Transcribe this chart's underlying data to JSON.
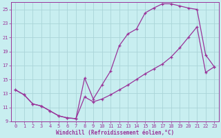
{
  "xlabel": "Windchill (Refroidissement éolien,°C)",
  "bg_color": "#c8eef0",
  "grid_color": "#aad4d8",
  "line_color": "#993399",
  "xlim": [
    -0.5,
    23.5
  ],
  "ylim": [
    9,
    26
  ],
  "xticks": [
    0,
    1,
    2,
    3,
    4,
    5,
    6,
    7,
    8,
    9,
    10,
    11,
    12,
    13,
    14,
    15,
    16,
    17,
    18,
    19,
    20,
    21,
    22,
    23
  ],
  "yticks": [
    9,
    11,
    13,
    15,
    17,
    19,
    21,
    23,
    25
  ],
  "upper_x": [
    0,
    1,
    2,
    3,
    4,
    5,
    6,
    7,
    8,
    9,
    10,
    11,
    12,
    13,
    14,
    15,
    16,
    17,
    18,
    19,
    20,
    21,
    22,
    23
  ],
  "upper_y": [
    13.5,
    12.8,
    11.5,
    11.2,
    10.5,
    9.8,
    9.5,
    9.4,
    15.2,
    12.2,
    14.2,
    16.2,
    19.8,
    21.5,
    22.2,
    24.5,
    25.2,
    25.8,
    25.8,
    25.5,
    25.2,
    25.0,
    18.5,
    16.8
  ],
  "lower_x": [
    0,
    1,
    2,
    3,
    4,
    5,
    6,
    7,
    8,
    9,
    10,
    11,
    12,
    13,
    14,
    15,
    16,
    17,
    18,
    19,
    20,
    21,
    22,
    23
  ],
  "lower_y": [
    13.5,
    12.8,
    11.5,
    11.2,
    10.5,
    9.8,
    9.5,
    9.4,
    12.5,
    11.8,
    12.2,
    12.8,
    13.5,
    14.2,
    15.0,
    15.8,
    16.5,
    17.2,
    18.2,
    19.5,
    21.0,
    22.5,
    16.0,
    16.8
  ],
  "tick_fontsize": 5,
  "xlabel_fontsize": 5.5
}
